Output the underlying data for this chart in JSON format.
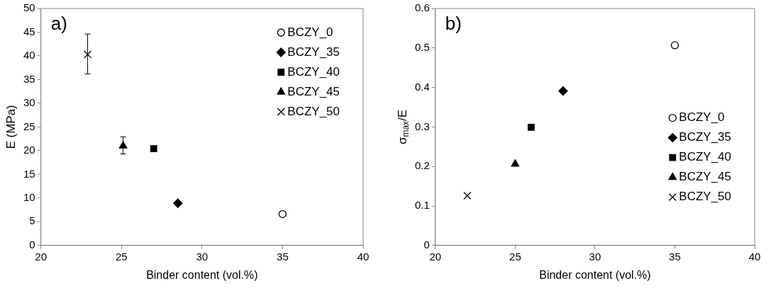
{
  "chart_data": [
    {
      "type": "scatter",
      "xlabel": "Binder content (vol.%)",
      "ylabel": "E (MPa)",
      "annotations": [
        "a)"
      ],
      "xlim": [
        20,
        40
      ],
      "xticks": [
        20,
        25,
        30,
        35,
        40
      ],
      "ylim": [
        0,
        50
      ],
      "yticks": [
        0,
        5,
        10,
        15,
        20,
        25,
        30,
        35,
        40,
        45,
        50
      ],
      "legend": "top right",
      "series": [
        {
          "name": "BCZY_0",
          "color": "#000000",
          "marker": "circle",
          "x": [
            35.0
          ],
          "values": [
            6.6
          ]
        },
        {
          "name": "BCZY_35",
          "color": "#000000",
          "marker": "diamond",
          "x": [
            28.5
          ],
          "values": [
            8.9
          ]
        },
        {
          "name": "BCZY_40",
          "color": "#000000",
          "marker": "square",
          "x": [
            27.0
          ],
          "values": [
            20.4
          ]
        },
        {
          "name": "BCZY_45",
          "color": "#000000",
          "marker": "triangle",
          "x": [
            25.1
          ],
          "values": [
            21.0
          ],
          "errors": [
            [
              19.3,
              22.9
            ]
          ]
        },
        {
          "name": "BCZY_50",
          "color": "#000000",
          "marker": "cross",
          "x": [
            22.9
          ],
          "values": [
            40.3
          ],
          "errors": [
            [
              36.2,
              44.6
            ]
          ]
        }
      ]
    },
    {
      "type": "scatter",
      "xlabel": "Binder content (vol.%)",
      "ylabel": "σ$_{max}$/E",
      "annotations": [
        "b)"
      ],
      "xlim": [
        20,
        40
      ],
      "xticks": [
        20,
        25,
        30,
        35,
        40
      ],
      "ylim": [
        0,
        0.6
      ],
      "yticks": [
        0,
        0.1,
        0.2,
        0.3,
        0.4,
        0.5,
        0.6
      ],
      "legend": "right",
      "series": [
        {
          "name": "BCZY_0",
          "color": "#000000",
          "marker": "circle",
          "x": [
            35.0
          ],
          "values": [
            0.507
          ]
        },
        {
          "name": "BCZY_35",
          "color": "#000000",
          "marker": "diamond",
          "x": [
            28.0
          ],
          "values": [
            0.391
          ]
        },
        {
          "name": "BCZY_40",
          "color": "#000000",
          "marker": "square",
          "x": [
            26.0
          ],
          "values": [
            0.299
          ]
        },
        {
          "name": "BCZY_45",
          "color": "#000000",
          "marker": "triangle",
          "x": [
            25.0
          ],
          "values": [
            0.206
          ]
        },
        {
          "name": "BCZY_50",
          "color": "#000000",
          "marker": "cross",
          "x": [
            22.0
          ],
          "values": [
            0.126
          ]
        }
      ]
    }
  ]
}
